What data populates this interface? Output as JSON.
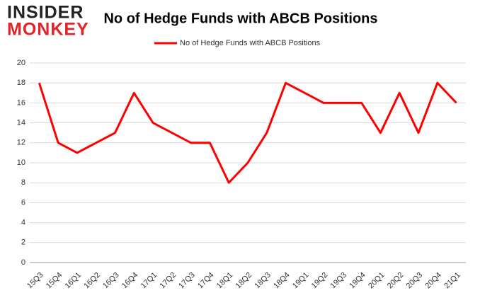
{
  "logo": {
    "line1": "INSIDER",
    "line2": "MONKEY"
  },
  "chart_data": {
    "type": "line",
    "title": "No of Hedge Funds with ABCB Positions",
    "categories": [
      "15Q3",
      "15Q4",
      "16Q1",
      "16Q2",
      "16Q3",
      "16Q4",
      "17Q1",
      "17Q2",
      "17Q3",
      "17Q4",
      "18Q1",
      "18Q2",
      "18Q3",
      "18Q4",
      "19Q1",
      "19Q2",
      "19Q3",
      "19Q4",
      "20Q1",
      "20Q2",
      "20Q3",
      "20Q4",
      "21Q1"
    ],
    "series": [
      {
        "name": "No of Hedge Funds with ABCB Positions",
        "color": "#ff0000",
        "values": [
          18,
          12,
          11,
          12,
          13,
          17,
          14,
          13,
          12,
          12,
          8,
          10,
          13,
          18,
          17,
          16,
          16,
          16,
          13,
          17,
          13,
          18,
          16
        ]
      }
    ],
    "ylim": [
      0,
      20
    ],
    "yticks": [
      0,
      2,
      4,
      6,
      8,
      10,
      12,
      14,
      16,
      18,
      20
    ],
    "grid": true,
    "legend": "top"
  }
}
